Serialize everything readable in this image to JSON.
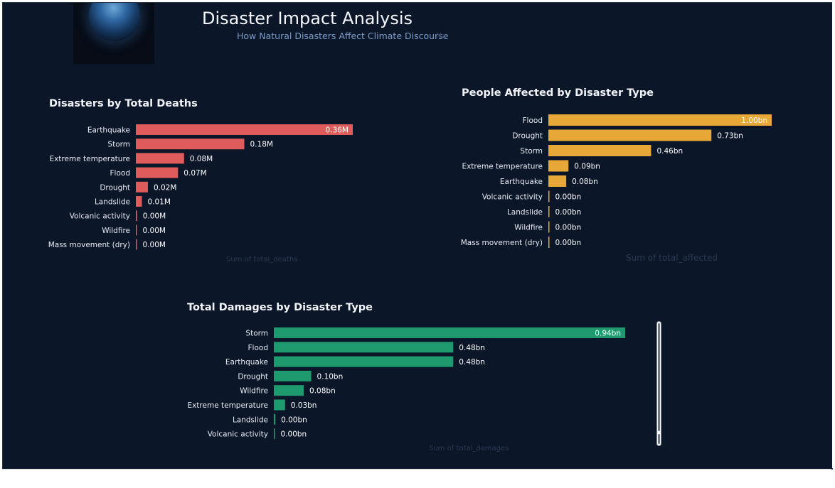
{
  "header": {
    "title": "Disaster Impact Analysis",
    "subtitle": "How Natural Disasters Affect Climate Discourse",
    "subtitle_ghost": "Na",
    "logo_icon": "earth-icon"
  },
  "chart_data": [
    {
      "id": "deaths",
      "type": "bar",
      "orientation": "horizontal",
      "title": "Disasters by Total Deaths",
      "xlabel": "Sum of total_deaths",
      "color": "#e05c5c",
      "xlim": [
        0,
        0.36
      ],
      "categories": [
        "Earthquake",
        "Storm",
        "Extreme temperature",
        "Flood",
        "Drought",
        "Landslide",
        "Volcanic activity",
        "Wildfire",
        "Mass movement (dry)"
      ],
      "values": [
        0.36,
        0.18,
        0.08,
        0.07,
        0.02,
        0.01,
        0.002,
        0.001,
        0.0005
      ],
      "labels": [
        "0.36M",
        "0.18M",
        "0.08M",
        "0.07M",
        "0.02M",
        "0.01M",
        "0.00M",
        "0.00M",
        "0.00M"
      ]
    },
    {
      "id": "affected",
      "type": "bar",
      "orientation": "horizontal",
      "title": "People Affected by Disaster Type",
      "xlabel": "Sum of total_affected",
      "color": "#e8a838",
      "xlim": [
        0,
        1.0
      ],
      "categories": [
        "Flood",
        "Drought",
        "Storm",
        "Extreme temperature",
        "Earthquake",
        "Volcanic activity",
        "Landslide",
        "Wildfire",
        "Mass movement (dry)"
      ],
      "values": [
        1.0,
        0.73,
        0.46,
        0.09,
        0.08,
        0.004,
        0.002,
        0.002,
        0.001
      ],
      "labels": [
        "1.00bn",
        "0.73bn",
        "0.46bn",
        "0.09bn",
        "0.08bn",
        "0.00bn",
        "0.00bn",
        "0.00bn",
        "0.00bn"
      ]
    },
    {
      "id": "damages",
      "type": "bar",
      "orientation": "horizontal",
      "title": "Total Damages by Disaster Type",
      "xlabel": "Sum of total_damages",
      "color": "#1f9a6e",
      "xlim": [
        0,
        0.94
      ],
      "categories": [
        "Storm",
        "Flood",
        "Earthquake",
        "Drought",
        "Wildfire",
        "Extreme temperature",
        "Landslide",
        "Volcanic activity"
      ],
      "values": [
        0.94,
        0.48,
        0.48,
        0.1,
        0.08,
        0.03,
        0.004,
        0.002
      ],
      "labels": [
        "0.94bn",
        "0.48bn",
        "0.48bn",
        "0.10bn",
        "0.08bn",
        "0.03bn",
        "0.00bn",
        "0.00bn"
      ]
    }
  ]
}
